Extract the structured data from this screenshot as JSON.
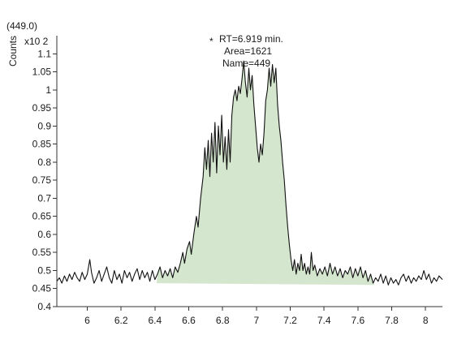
{
  "chart_data": {
    "type": "area",
    "series_label": "(449.0)",
    "ylabel": "Counts",
    "y_multiplier": "x10 2",
    "xlim": [
      5.82,
      8.1
    ],
    "ylim": [
      0.4,
      1.15
    ],
    "x_ticks": [
      "6",
      "6.2",
      "6.4",
      "6.6",
      "6.8",
      "7",
      "7.2",
      "7.4",
      "7.6",
      "7.8",
      "8"
    ],
    "x_tick_values": [
      6,
      6.2,
      6.4,
      6.6,
      6.8,
      7,
      7.2,
      7.4,
      7.6,
      7.8,
      8
    ],
    "y_ticks": [
      "0.4",
      "0.45",
      "0.5",
      "0.55",
      "0.6",
      "0.65",
      "0.7",
      "0.75",
      "0.8",
      "0.85",
      "0.9",
      "0.95",
      "1",
      "1.05",
      "1.1"
    ],
    "y_tick_values": [
      0.4,
      0.45,
      0.5,
      0.55,
      0.6,
      0.65,
      0.7,
      0.75,
      0.8,
      0.85,
      0.9,
      0.95,
      1,
      1.05,
      1.1
    ],
    "annotation": {
      "marker": "*",
      "line1": "RT=6.919 min.",
      "line2": "Area=1621",
      "line3": "Name=449"
    },
    "integration": {
      "x_start": 6.41,
      "x_end": 7.7,
      "baseline_start": 0.465,
      "baseline_end": 0.46
    },
    "grid": false,
    "colors": {
      "line": "#111111",
      "fill": "#d4e6cd",
      "axis": "#333333"
    },
    "points": [
      [
        5.82,
        0.47
      ],
      [
        5.835,
        0.48
      ],
      [
        5.85,
        0.465
      ],
      [
        5.865,
        0.485
      ],
      [
        5.88,
        0.47
      ],
      [
        5.895,
        0.49
      ],
      [
        5.91,
        0.475
      ],
      [
        5.925,
        0.495
      ],
      [
        5.94,
        0.48
      ],
      [
        5.955,
        0.47
      ],
      [
        5.97,
        0.495
      ],
      [
        5.985,
        0.475
      ],
      [
        6.0,
        0.49
      ],
      [
        6.015,
        0.53
      ],
      [
        6.025,
        0.495
      ],
      [
        6.04,
        0.465
      ],
      [
        6.055,
        0.48
      ],
      [
        6.07,
        0.5
      ],
      [
        6.085,
        0.47
      ],
      [
        6.1,
        0.49
      ],
      [
        6.115,
        0.51
      ],
      [
        6.13,
        0.48
      ],
      [
        6.145,
        0.465
      ],
      [
        6.16,
        0.5
      ],
      [
        6.175,
        0.475
      ],
      [
        6.19,
        0.49
      ],
      [
        6.205,
        0.465
      ],
      [
        6.22,
        0.5
      ],
      [
        6.235,
        0.48
      ],
      [
        6.25,
        0.495
      ],
      [
        6.265,
        0.47
      ],
      [
        6.28,
        0.49
      ],
      [
        6.295,
        0.505
      ],
      [
        6.31,
        0.475
      ],
      [
        6.325,
        0.5
      ],
      [
        6.34,
        0.48
      ],
      [
        6.355,
        0.495
      ],
      [
        6.37,
        0.47
      ],
      [
        6.385,
        0.5
      ],
      [
        6.4,
        0.475
      ],
      [
        6.415,
        0.49
      ],
      [
        6.43,
        0.51
      ],
      [
        6.445,
        0.48
      ],
      [
        6.46,
        0.5
      ],
      [
        6.475,
        0.485
      ],
      [
        6.49,
        0.505
      ],
      [
        6.505,
        0.48
      ],
      [
        6.52,
        0.51
      ],
      [
        6.535,
        0.495
      ],
      [
        6.55,
        0.52
      ],
      [
        6.565,
        0.55
      ],
      [
        6.575,
        0.52
      ],
      [
        6.59,
        0.56
      ],
      [
        6.605,
        0.58
      ],
      [
        6.615,
        0.545
      ],
      [
        6.63,
        0.6
      ],
      [
        6.645,
        0.65
      ],
      [
        6.655,
        0.62
      ],
      [
        6.67,
        0.7
      ],
      [
        6.685,
        0.76
      ],
      [
        6.695,
        0.84
      ],
      [
        6.705,
        0.78
      ],
      [
        6.715,
        0.86
      ],
      [
        6.725,
        0.76
      ],
      [
        6.735,
        0.88
      ],
      [
        6.745,
        0.8
      ],
      [
        6.755,
        0.91
      ],
      [
        6.765,
        0.77
      ],
      [
        6.775,
        0.9
      ],
      [
        6.785,
        0.82
      ],
      [
        6.795,
        0.93
      ],
      [
        6.805,
        0.8
      ],
      [
        6.815,
        0.87
      ],
      [
        6.825,
        0.78
      ],
      [
        6.835,
        0.89
      ],
      [
        6.845,
        0.8
      ],
      [
        6.855,
        0.93
      ],
      [
        6.865,
        0.98
      ],
      [
        6.875,
        1.0
      ],
      [
        6.885,
        0.97
      ],
      [
        6.895,
        1.01
      ],
      [
        6.905,
        0.99
      ],
      [
        6.915,
        1.03
      ],
      [
        6.925,
        1.08
      ],
      [
        6.935,
        1.02
      ],
      [
        6.945,
        0.98
      ],
      [
        6.955,
        1.06
      ],
      [
        6.965,
        1.0
      ],
      [
        6.975,
        1.04
      ],
      [
        6.985,
        0.96
      ],
      [
        6.995,
        0.9
      ],
      [
        7.005,
        0.84
      ],
      [
        7.015,
        0.8
      ],
      [
        7.025,
        0.85
      ],
      [
        7.035,
        0.82
      ],
      [
        7.045,
        0.88
      ],
      [
        7.055,
        0.97
      ],
      [
        7.065,
        1.0
      ],
      [
        7.075,
        1.06
      ],
      [
        7.085,
        1.01
      ],
      [
        7.095,
        1.07
      ],
      [
        7.105,
        1.02
      ],
      [
        7.115,
        1.06
      ],
      [
        7.125,
        0.96
      ],
      [
        7.135,
        0.9
      ],
      [
        7.145,
        0.86
      ],
      [
        7.155,
        0.8
      ],
      [
        7.165,
        0.75
      ],
      [
        7.175,
        0.68
      ],
      [
        7.185,
        0.62
      ],
      [
        7.195,
        0.57
      ],
      [
        7.205,
        0.53
      ],
      [
        7.215,
        0.5
      ],
      [
        7.225,
        0.53
      ],
      [
        7.235,
        0.49
      ],
      [
        7.245,
        0.52
      ],
      [
        7.255,
        0.5
      ],
      [
        7.265,
        0.545
      ],
      [
        7.275,
        0.5
      ],
      [
        7.285,
        0.52
      ],
      [
        7.295,
        0.49
      ],
      [
        7.305,
        0.51
      ],
      [
        7.315,
        0.49
      ],
      [
        7.325,
        0.55
      ],
      [
        7.335,
        0.5
      ],
      [
        7.345,
        0.515
      ],
      [
        7.36,
        0.485
      ],
      [
        7.375,
        0.505
      ],
      [
        7.39,
        0.49
      ],
      [
        7.405,
        0.51
      ],
      [
        7.42,
        0.485
      ],
      [
        7.435,
        0.52
      ],
      [
        7.45,
        0.49
      ],
      [
        7.465,
        0.51
      ],
      [
        7.48,
        0.485
      ],
      [
        7.495,
        0.505
      ],
      [
        7.51,
        0.48
      ],
      [
        7.525,
        0.5
      ],
      [
        7.54,
        0.49
      ],
      [
        7.555,
        0.51
      ],
      [
        7.57,
        0.48
      ],
      [
        7.585,
        0.505
      ],
      [
        7.6,
        0.485
      ],
      [
        7.615,
        0.51
      ],
      [
        7.63,
        0.48
      ],
      [
        7.645,
        0.5
      ],
      [
        7.66,
        0.47
      ],
      [
        7.675,
        0.49
      ],
      [
        7.69,
        0.465
      ],
      [
        7.705,
        0.48
      ],
      [
        7.72,
        0.47
      ],
      [
        7.735,
        0.49
      ],
      [
        7.75,
        0.465
      ],
      [
        7.765,
        0.485
      ],
      [
        7.78,
        0.46
      ],
      [
        7.795,
        0.48
      ],
      [
        7.81,
        0.465
      ],
      [
        7.825,
        0.475
      ],
      [
        7.84,
        0.46
      ],
      [
        7.855,
        0.48
      ],
      [
        7.87,
        0.49
      ],
      [
        7.885,
        0.47
      ],
      [
        7.9,
        0.485
      ],
      [
        7.915,
        0.465
      ],
      [
        7.93,
        0.48
      ],
      [
        7.945,
        0.47
      ],
      [
        7.96,
        0.485
      ],
      [
        7.975,
        0.475
      ],
      [
        7.99,
        0.5
      ],
      [
        8.005,
        0.475
      ],
      [
        8.02,
        0.49
      ],
      [
        8.035,
        0.465
      ],
      [
        8.05,
        0.48
      ],
      [
        8.065,
        0.47
      ],
      [
        8.08,
        0.485
      ],
      [
        8.1,
        0.475
      ]
    ]
  }
}
